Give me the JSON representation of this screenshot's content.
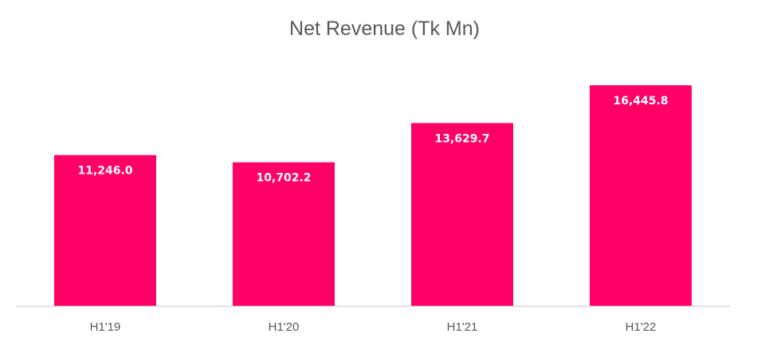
{
  "chart_data": {
    "type": "bar",
    "title": "Net Revenue (Tk Mn)",
    "categories": [
      "H1'19",
      "H1'20",
      "H1'21",
      "H1'22"
    ],
    "values": [
      11246.0,
      10702.2,
      13629.7,
      16445.8
    ],
    "data_labels": [
      "11,246.0",
      "10,702.2",
      "13,629.7",
      "16,445.8"
    ],
    "xlabel": "",
    "ylabel": "",
    "ylim": [
      0,
      18000
    ],
    "grid": false,
    "legend": "none",
    "colors": {
      "bar": "#FF0066",
      "axis": "#D9D9D9",
      "text": "#595959",
      "label": "#FFFFFF"
    }
  }
}
